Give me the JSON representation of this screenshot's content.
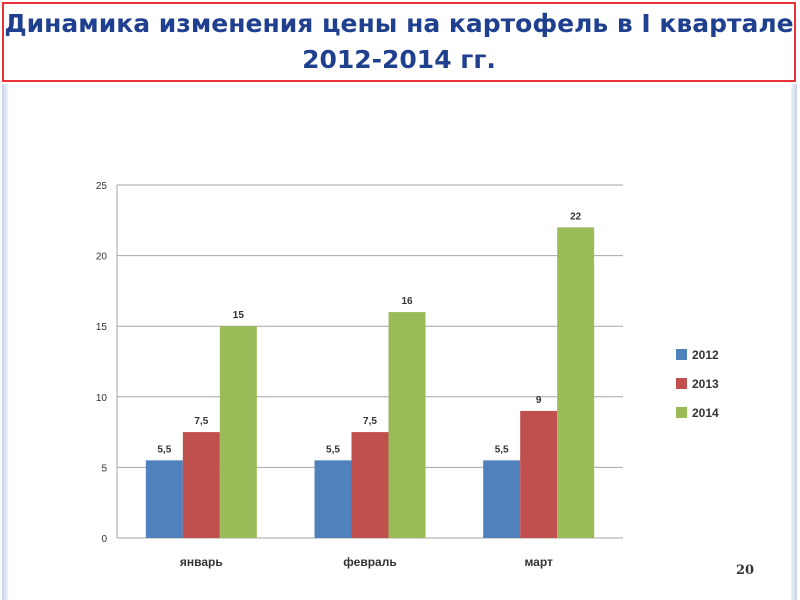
{
  "slide": {
    "title": "Динамика изменения цены на картофель в I квартале 2012-2014 гг.",
    "page_number": "20"
  },
  "colors": {
    "title_text": "#1f3f8f",
    "title_border": "#e8323a",
    "series_2012": "#4f81bd",
    "series_2013": "#c0504d",
    "series_2014": "#9bbb59"
  },
  "chart_data": {
    "type": "bar",
    "title": "",
    "xlabel": "",
    "ylabel": "",
    "categories": [
      "январь",
      "февраль",
      "март"
    ],
    "ylim": [
      0,
      25
    ],
    "yticks": [
      0,
      5,
      10,
      15,
      20,
      25
    ],
    "grid": true,
    "legend_position": "right",
    "series": [
      {
        "name": "2012",
        "values": [
          5.5,
          5.5,
          5.5
        ],
        "labels": [
          "5,5",
          "5,5",
          "5,5"
        ],
        "color": "#4f81bd"
      },
      {
        "name": "2013",
        "values": [
          7.5,
          7.5,
          9
        ],
        "labels": [
          "7,5",
          "7,5",
          "9"
        ],
        "color": "#c0504d"
      },
      {
        "name": "2014",
        "values": [
          15,
          16,
          22
        ],
        "labels": [
          "15",
          "16",
          "22"
        ],
        "color": "#9bbb59"
      }
    ]
  }
}
